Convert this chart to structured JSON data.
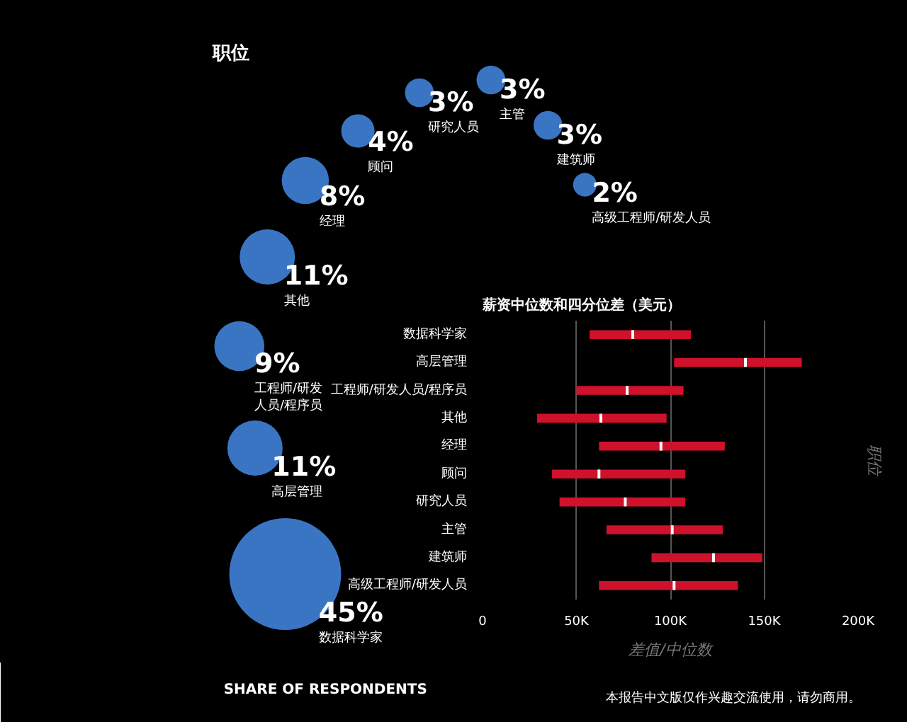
{
  "chart_data": [
    {
      "type": "other",
      "title": "职位",
      "categories": [
        "数据科学家",
        "高层管理",
        "工程师/研发人员/程序员",
        "其他",
        "经理",
        "顾问",
        "研究人员",
        "主管",
        "建筑师",
        "高级工程师/研发人员"
      ],
      "values": [
        45,
        11,
        9,
        11,
        8,
        4,
        3,
        3,
        3,
        2
      ],
      "value_labels": [
        "45%",
        "11%",
        "9%",
        "11%",
        "8%",
        "4%",
        "3%",
        "3%",
        "3%",
        "2%"
      ],
      "color": "#3a75c4",
      "annotations": [
        "SHARE OF RESPONDENTS",
        "本报告中文版仅作兴趣交流使用，请勿商用。"
      ]
    },
    {
      "type": "box",
      "orientation": "horizontal",
      "title": "薪资中位数和四分位差（美元）",
      "xlabel": "差值/中位数",
      "ylabel": "职位",
      "categories": [
        "数据科学家",
        "高层管理",
        "工程师/研发人员/程序员",
        "其他",
        "经理",
        "顾问",
        "研究人员",
        "主管",
        "建筑师",
        "高级工程师/研发人员"
      ],
      "color": "#d0112b",
      "boxes": [
        {
          "low": 57000,
          "q1": 57000,
          "median": 80000,
          "q3": 111000,
          "high": 111000
        },
        {
          "low": 102000,
          "q1": 102000,
          "median": 140000,
          "q3": 170000,
          "high": 170000
        },
        {
          "low": 50000,
          "q1": 50000,
          "median": 77000,
          "q3": 107000,
          "high": 107000
        },
        {
          "low": 29000,
          "q1": 29000,
          "median": 63000,
          "q3": 98000,
          "high": 98000
        },
        {
          "low": 62000,
          "q1": 62000,
          "median": 95000,
          "q3": 129000,
          "high": 129000
        },
        {
          "low": 37000,
          "q1": 37000,
          "median": 62000,
          "q3": 108000,
          "high": 108000
        },
        {
          "low": 41000,
          "q1": 41000,
          "median": 76000,
          "q3": 108000,
          "high": 108000
        },
        {
          "low": 66000,
          "q1": 66000,
          "median": 101000,
          "q3": 128000,
          "high": 128000
        },
        {
          "low": 90000,
          "q1": 90000,
          "median": 123000,
          "q3": 149000,
          "high": 149000
        },
        {
          "low": 62000,
          "q1": 62000,
          "median": 102000,
          "q3": 136000,
          "high": 136000
        }
      ],
      "xlim": [
        0,
        200000
      ],
      "xticks": [
        0,
        {
          "value": 50000,
          "label": "50K"
        },
        {
          "value": 100000,
          "label": "100K"
        },
        {
          "value": 150000,
          "label": "150K"
        },
        {
          "value": 200000,
          "label": "200K"
        }
      ],
      "grid": "x"
    }
  ]
}
